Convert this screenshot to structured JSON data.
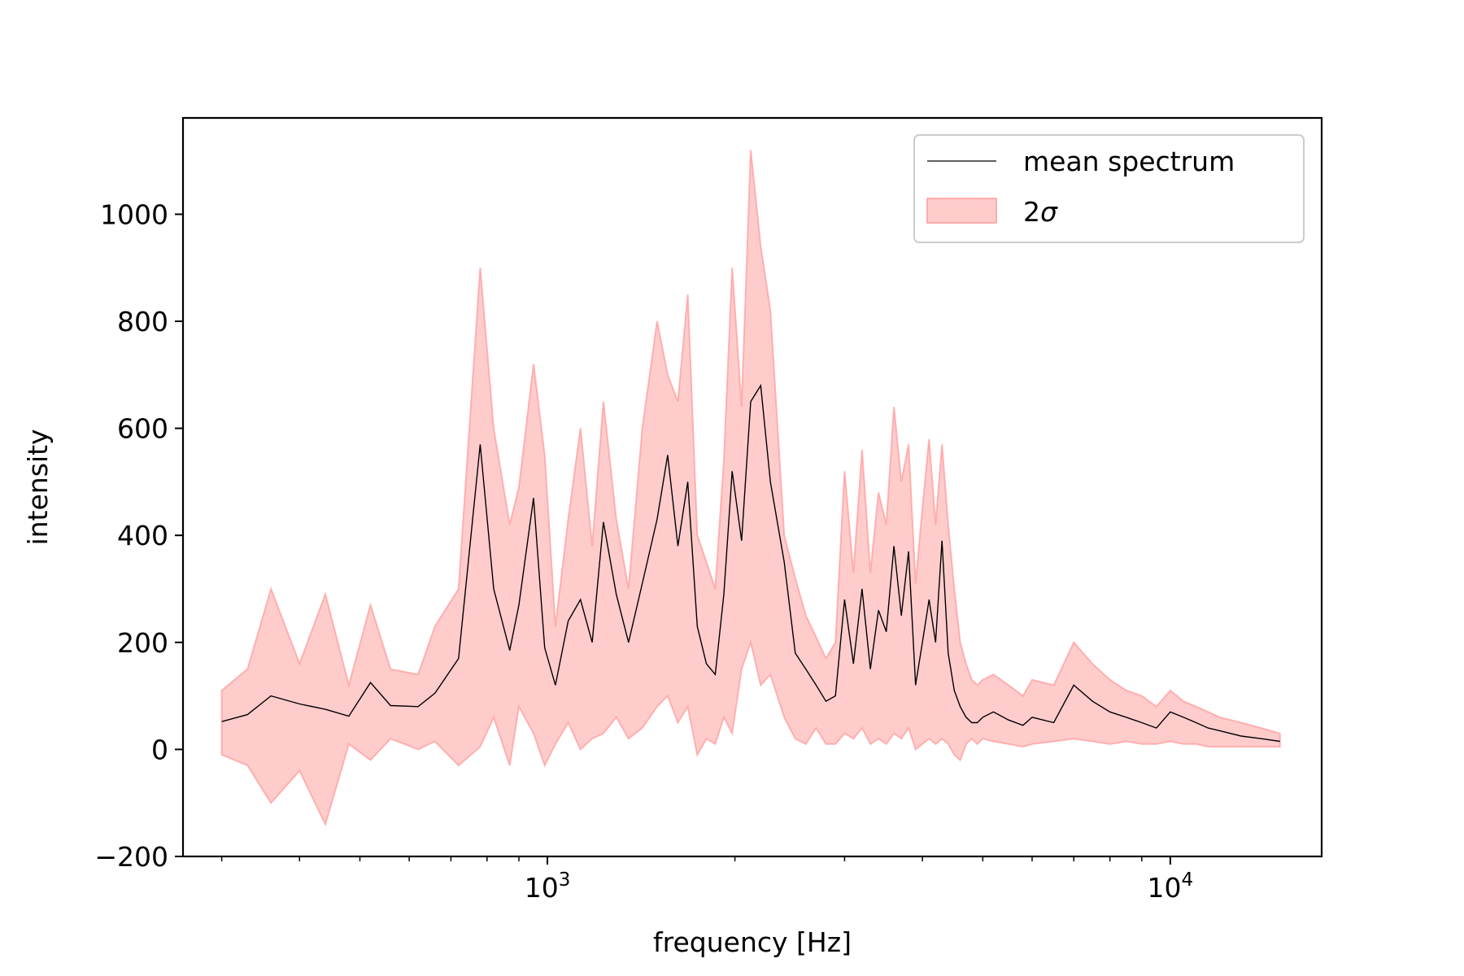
{
  "chart_data": {
    "type": "line",
    "xlabel": "frequency [Hz]",
    "ylabel": "intensity",
    "xscale": "log",
    "xlim": [
      260,
      17500
    ],
    "ylim": [
      -200,
      1180
    ],
    "x_ticks": [
      {
        "value": 1000,
        "base": "10",
        "exp": "3"
      },
      {
        "value": 10000,
        "base": "10",
        "exp": "4"
      }
    ],
    "y_ticks": [
      {
        "value": -200,
        "label": "−200"
      },
      {
        "value": 0,
        "label": "0"
      },
      {
        "value": 200,
        "label": "200"
      },
      {
        "value": 400,
        "label": "400"
      },
      {
        "value": 600,
        "label": "600"
      },
      {
        "value": 800,
        "label": "800"
      },
      {
        "value": 1000,
        "label": "1000"
      }
    ],
    "grid": false,
    "legend_position": "top-right",
    "legend": [
      {
        "label": "mean spectrum",
        "kind": "line",
        "color": "#000000"
      },
      {
        "label_base": "2",
        "label_symbol": "σ",
        "kind": "patch",
        "color": "#ff9999"
      }
    ],
    "series": [
      {
        "name": "mean spectrum",
        "color": "#000000",
        "x": [
          300,
          330,
          360,
          400,
          440,
          480,
          520,
          560,
          620,
          660,
          720,
          780,
          820,
          870,
          900,
          950,
          990,
          1030,
          1080,
          1130,
          1180,
          1230,
          1290,
          1350,
          1420,
          1500,
          1560,
          1620,
          1680,
          1740,
          1800,
          1860,
          1920,
          1980,
          2050,
          2120,
          2200,
          2280,
          2400,
          2500,
          2600,
          2700,
          2800,
          2900,
          3000,
          3100,
          3200,
          3300,
          3400,
          3500,
          3600,
          3700,
          3800,
          3900,
          4000,
          4100,
          4200,
          4300,
          4400,
          4500,
          4600,
          4700,
          4800,
          4900,
          5000,
          5200,
          5500,
          5800,
          6000,
          6500,
          7000,
          7500,
          8000,
          8500,
          9000,
          9500,
          10000,
          10500,
          11000,
          11500,
          12000,
          13000,
          14000,
          15000
        ],
        "values": [
          52,
          65,
          100,
          85,
          75,
          62,
          125,
          82,
          80,
          105,
          170,
          570,
          300,
          185,
          270,
          470,
          190,
          120,
          240,
          280,
          200,
          425,
          290,
          200,
          310,
          430,
          550,
          380,
          500,
          230,
          160,
          140,
          290,
          520,
          390,
          650,
          680,
          500,
          350,
          180,
          150,
          120,
          90,
          100,
          280,
          160,
          300,
          150,
          260,
          220,
          380,
          250,
          370,
          120,
          200,
          280,
          200,
          390,
          180,
          110,
          80,
          60,
          50,
          50,
          60,
          70,
          55,
          45,
          60,
          50,
          120,
          90,
          70,
          60,
          50,
          40,
          70,
          60,
          50,
          40,
          35,
          25,
          20,
          15
        ]
      },
      {
        "name": "2σ",
        "color": "#ff9999",
        "x": [
          300,
          330,
          360,
          400,
          440,
          480,
          520,
          560,
          620,
          660,
          720,
          780,
          820,
          870,
          900,
          950,
          990,
          1030,
          1080,
          1130,
          1180,
          1230,
          1290,
          1350,
          1420,
          1500,
          1560,
          1620,
          1680,
          1740,
          1800,
          1860,
          1920,
          1980,
          2050,
          2120,
          2200,
          2280,
          2400,
          2500,
          2600,
          2700,
          2800,
          2900,
          3000,
          3100,
          3200,
          3300,
          3400,
          3500,
          3600,
          3700,
          3800,
          3900,
          4000,
          4100,
          4200,
          4300,
          4400,
          4500,
          4600,
          4700,
          4800,
          4900,
          5000,
          5200,
          5500,
          5800,
          6000,
          6500,
          7000,
          7500,
          8000,
          8500,
          9000,
          9500,
          10000,
          10500,
          11000,
          11500,
          12000,
          13000,
          14000,
          15000
        ],
        "upper": [
          110,
          150,
          300,
          160,
          290,
          120,
          270,
          150,
          140,
          230,
          300,
          900,
          600,
          420,
          490,
          720,
          550,
          230,
          430,
          600,
          380,
          650,
          430,
          300,
          600,
          800,
          700,
          650,
          850,
          400,
          350,
          300,
          540,
          900,
          640,
          1120,
          940,
          820,
          400,
          320,
          250,
          210,
          170,
          200,
          520,
          330,
          560,
          330,
          480,
          420,
          640,
          500,
          570,
          310,
          450,
          580,
          420,
          570,
          420,
          300,
          200,
          160,
          130,
          120,
          130,
          140,
          120,
          100,
          130,
          120,
          200,
          160,
          130,
          110,
          100,
          80,
          110,
          90,
          80,
          70,
          60,
          50,
          40,
          30
        ],
        "lower": [
          -10,
          -30,
          -100,
          -40,
          -140,
          10,
          -20,
          20,
          0,
          15,
          -30,
          5,
          60,
          -30,
          80,
          30,
          -30,
          10,
          50,
          0,
          20,
          30,
          60,
          20,
          40,
          80,
          100,
          50,
          80,
          -10,
          20,
          10,
          60,
          30,
          150,
          200,
          120,
          140,
          60,
          20,
          10,
          40,
          10,
          10,
          30,
          20,
          40,
          10,
          20,
          10,
          30,
          20,
          40,
          0,
          10,
          20,
          10,
          20,
          10,
          -10,
          -20,
          10,
          20,
          10,
          20,
          15,
          10,
          5,
          10,
          15,
          20,
          15,
          10,
          15,
          10,
          10,
          15,
          10,
          10,
          5,
          5,
          5,
          5,
          5
        ]
      }
    ]
  }
}
